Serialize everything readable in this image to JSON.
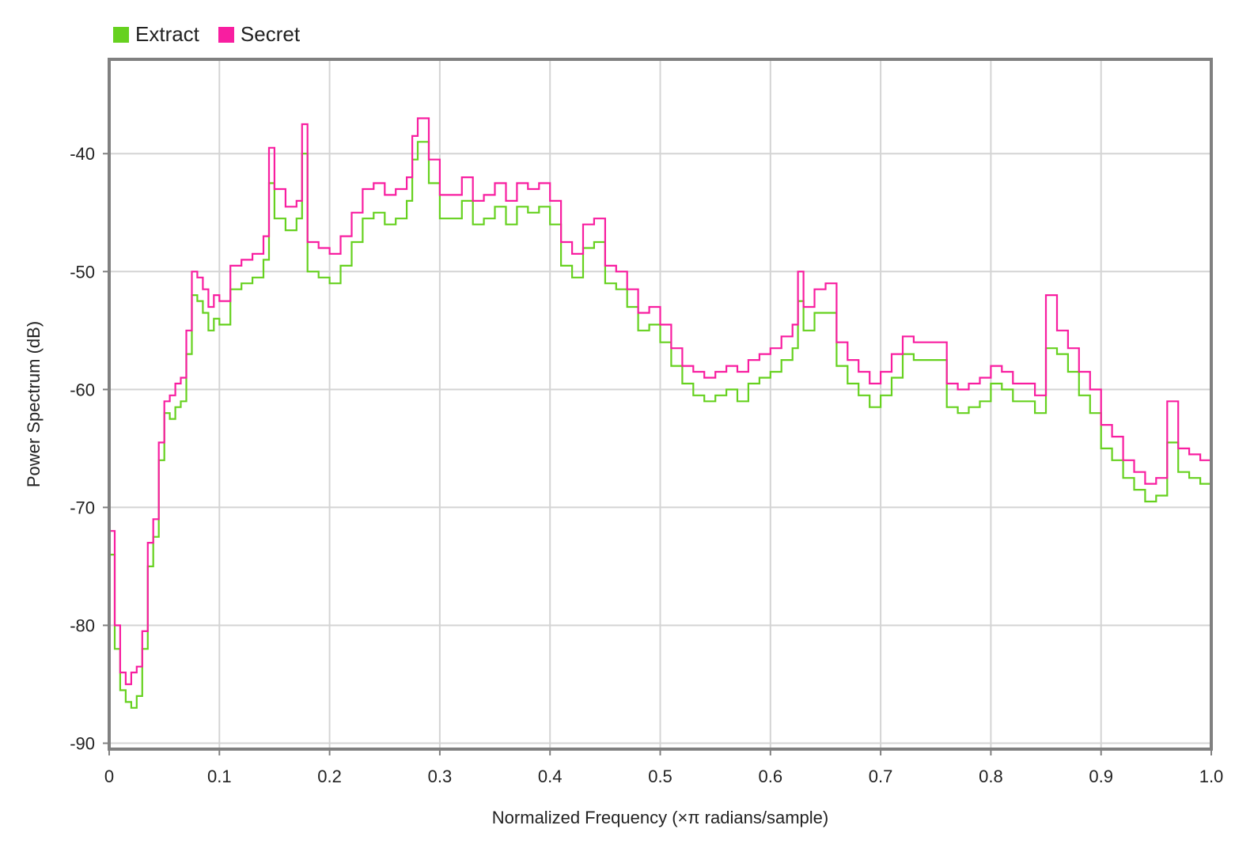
{
  "chart_data": {
    "type": "line",
    "title": "",
    "xlabel": "Normalized Frequency (×π radians/sample)",
    "ylabel": "Power Spectrum (dB)",
    "xlim": [
      0,
      1.0
    ],
    "ylim": [
      -90.5,
      -32
    ],
    "x_ticks": [
      0,
      0.1,
      0.2,
      0.3,
      0.4,
      0.5,
      0.6,
      0.7,
      0.8,
      0.9,
      1.0
    ],
    "x_tick_labels": [
      "0",
      "0.1",
      "0.2",
      "0.3",
      "0.4",
      "0.5",
      "0.6",
      "0.7",
      "0.8",
      "0.9",
      "1.0"
    ],
    "y_ticks": [
      -90,
      -80,
      -70,
      -60,
      -50,
      -40
    ],
    "y_tick_labels": [
      "-90",
      "-80",
      "-70",
      "-60",
      "-50",
      "-40"
    ],
    "grid": true,
    "legend_position": "top-left",
    "step": true,
    "series": [
      {
        "name": "Extract",
        "color": "#66d11f",
        "x": [
          0,
          0.005,
          0.01,
          0.015,
          0.02,
          0.025,
          0.03,
          0.035,
          0.04,
          0.045,
          0.05,
          0.055,
          0.06,
          0.065,
          0.07,
          0.075,
          0.08,
          0.085,
          0.09,
          0.095,
          0.1,
          0.11,
          0.12,
          0.13,
          0.14,
          0.145,
          0.15,
          0.16,
          0.17,
          0.175,
          0.18,
          0.19,
          0.2,
          0.21,
          0.22,
          0.23,
          0.24,
          0.25,
          0.26,
          0.27,
          0.275,
          0.28,
          0.29,
          0.3,
          0.31,
          0.32,
          0.33,
          0.34,
          0.35,
          0.36,
          0.37,
          0.38,
          0.39,
          0.4,
          0.41,
          0.42,
          0.43,
          0.44,
          0.45,
          0.46,
          0.47,
          0.48,
          0.49,
          0.5,
          0.51,
          0.52,
          0.53,
          0.54,
          0.55,
          0.56,
          0.57,
          0.58,
          0.59,
          0.6,
          0.61,
          0.62,
          0.625,
          0.63,
          0.64,
          0.65,
          0.66,
          0.67,
          0.68,
          0.69,
          0.7,
          0.71,
          0.72,
          0.73,
          0.74,
          0.75,
          0.76,
          0.77,
          0.78,
          0.79,
          0.8,
          0.81,
          0.82,
          0.83,
          0.84,
          0.85,
          0.86,
          0.87,
          0.88,
          0.89,
          0.9,
          0.91,
          0.92,
          0.93,
          0.94,
          0.95,
          0.96,
          0.97,
          0.98,
          0.99,
          1.0
        ],
        "values": [
          -74,
          -82,
          -85.5,
          -86.5,
          -87,
          -86,
          -82,
          -75,
          -72.5,
          -66,
          -62,
          -62.5,
          -61.5,
          -61,
          -57,
          -52,
          -52.5,
          -53.5,
          -55,
          -54,
          -54.5,
          -51.5,
          -51,
          -50.5,
          -49,
          -42.5,
          -45.5,
          -46.5,
          -45.5,
          -40,
          -50,
          -50.5,
          -51,
          -49.5,
          -47.5,
          -45.5,
          -45,
          -46,
          -45.5,
          -44,
          -40.5,
          -39,
          -42.5,
          -45.5,
          -45.5,
          -44,
          -46,
          -45.5,
          -44.5,
          -46,
          -44.5,
          -45,
          -44.5,
          -46,
          -49.5,
          -50.5,
          -48,
          -47.5,
          -51,
          -51.5,
          -53,
          -55,
          -54.5,
          -56,
          -58,
          -59.5,
          -60.5,
          -61,
          -60.5,
          -60,
          -61,
          -59.5,
          -59,
          -58.5,
          -57.5,
          -56.5,
          -52.5,
          -55,
          -53.5,
          -53.5,
          -58,
          -59.5,
          -60.5,
          -61.5,
          -60.5,
          -59,
          -57,
          -57.5,
          -57.5,
          -57.5,
          -61.5,
          -62,
          -61.5,
          -61,
          -59.5,
          -60,
          -61,
          -61,
          -62,
          -56.5,
          -57,
          -58.5,
          -60.5,
          -62,
          -65,
          -66,
          -67.5,
          -68.5,
          -69.5,
          -69,
          -64.5,
          -67,
          -67.5,
          -68,
          -71.5
        ]
      },
      {
        "name": "Secret",
        "color": "#f81ea0",
        "x": [
          0,
          0.005,
          0.01,
          0.015,
          0.02,
          0.025,
          0.03,
          0.035,
          0.04,
          0.045,
          0.05,
          0.055,
          0.06,
          0.065,
          0.07,
          0.075,
          0.08,
          0.085,
          0.09,
          0.095,
          0.1,
          0.11,
          0.12,
          0.13,
          0.14,
          0.145,
          0.15,
          0.16,
          0.17,
          0.175,
          0.18,
          0.19,
          0.2,
          0.21,
          0.22,
          0.23,
          0.24,
          0.25,
          0.26,
          0.27,
          0.275,
          0.28,
          0.29,
          0.3,
          0.31,
          0.32,
          0.33,
          0.34,
          0.35,
          0.36,
          0.37,
          0.38,
          0.39,
          0.4,
          0.41,
          0.42,
          0.43,
          0.44,
          0.45,
          0.46,
          0.47,
          0.48,
          0.49,
          0.5,
          0.51,
          0.52,
          0.53,
          0.54,
          0.55,
          0.56,
          0.57,
          0.58,
          0.59,
          0.6,
          0.61,
          0.62,
          0.625,
          0.63,
          0.64,
          0.65,
          0.66,
          0.67,
          0.68,
          0.69,
          0.7,
          0.71,
          0.72,
          0.73,
          0.74,
          0.75,
          0.76,
          0.77,
          0.78,
          0.79,
          0.8,
          0.81,
          0.82,
          0.83,
          0.84,
          0.85,
          0.86,
          0.87,
          0.88,
          0.89,
          0.9,
          0.91,
          0.92,
          0.93,
          0.94,
          0.95,
          0.96,
          0.97,
          0.98,
          0.99,
          1.0
        ],
        "values": [
          -72,
          -80,
          -84,
          -85,
          -84,
          -83.5,
          -80.5,
          -73,
          -71,
          -64.5,
          -61,
          -60.5,
          -59.5,
          -59,
          -55,
          -50,
          -50.5,
          -51.5,
          -53,
          -52,
          -52.5,
          -49.5,
          -49,
          -48.5,
          -47,
          -39.5,
          -43,
          -44.5,
          -44,
          -37.5,
          -47.5,
          -48,
          -48.5,
          -47,
          -45,
          -43,
          -42.5,
          -43.5,
          -43,
          -42,
          -38.5,
          -37,
          -40.5,
          -43.5,
          -43.5,
          -42,
          -44,
          -43.5,
          -42.5,
          -44,
          -42.5,
          -43,
          -42.5,
          -44,
          -47.5,
          -48.5,
          -46,
          -45.5,
          -49.5,
          -50,
          -51.5,
          -53.5,
          -53,
          -54.5,
          -56.5,
          -58,
          -58.5,
          -59,
          -58.5,
          -58,
          -58.5,
          -57.5,
          -57,
          -56.5,
          -55.5,
          -54.5,
          -50,
          -53,
          -51.5,
          -51,
          -56,
          -57.5,
          -58.5,
          -59.5,
          -58.5,
          -57,
          -55.5,
          -56,
          -56,
          -56,
          -59.5,
          -60,
          -59.5,
          -59,
          -58,
          -58.5,
          -59.5,
          -59.5,
          -60.5,
          -52,
          -55,
          -56.5,
          -58.5,
          -60,
          -63,
          -64,
          -66,
          -67,
          -68,
          -67.5,
          -61,
          -65,
          -65.5,
          -66,
          -70
        ]
      }
    ]
  }
}
